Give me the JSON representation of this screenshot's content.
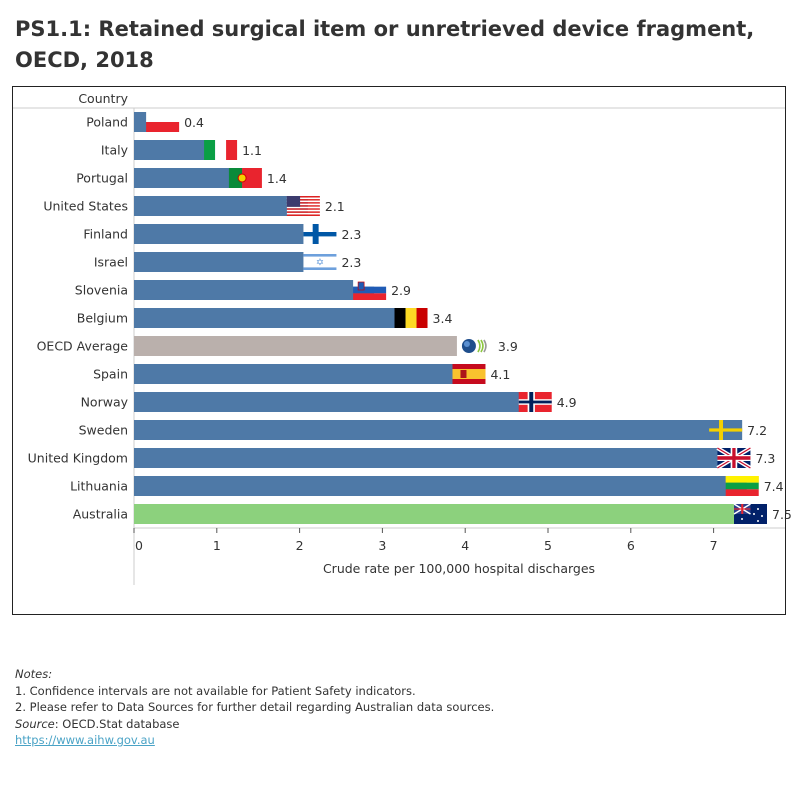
{
  "title": "PS1.1: Retained surgical item or unretrieved device fragment, OECD, 2018",
  "chart_data": {
    "type": "bar",
    "orientation": "horizontal",
    "row_header": "Country",
    "xlabel": "Crude rate per 100,000 hospital discharges",
    "xlim": [
      0,
      7.6
    ],
    "xticks": [
      "0",
      "1",
      "2",
      "3",
      "4",
      "5",
      "6",
      "7"
    ],
    "grid": false,
    "categories": [
      "Poland",
      "Italy",
      "Portugal",
      "United States",
      "Finland",
      "Israel",
      "Slovenia",
      "Belgium",
      "OECD Average",
      "Spain",
      "Norway",
      "Sweden",
      "United Kingdom",
      "Lithuania",
      "Australia"
    ],
    "values": [
      0.4,
      1.1,
      1.4,
      2.1,
      2.3,
      2.3,
      2.9,
      3.4,
      3.9,
      4.1,
      4.9,
      7.2,
      7.3,
      7.4,
      7.5
    ],
    "data_labels": [
      "0.4",
      "1.1",
      "1.4",
      "2.1",
      "2.3",
      "2.3",
      "2.9",
      "3.4",
      "3.9",
      "4.1",
      "4.9",
      "7.2",
      "7.3",
      "7.4",
      "7.5"
    ],
    "flags": [
      "poland-flag-icon",
      "italy-flag-icon",
      "portugal-flag-icon",
      "usa-flag-icon",
      "finland-flag-icon",
      "israel-flag-icon",
      "slovenia-flag-icon",
      "belgium-flag-icon",
      "oecd-logo-icon",
      "spain-flag-icon",
      "norway-flag-icon",
      "sweden-flag-icon",
      "uk-flag-icon",
      "lithuania-flag-icon",
      "australia-flag-icon"
    ],
    "colors": {
      "default": "#4e79a7",
      "OECD Average": "#bab0ac",
      "Australia": "#8cd17d"
    }
  },
  "notes": {
    "heading": "Notes:",
    "items": [
      "1. Confidence intervals are not available for Patient Safety indicators.",
      "2. Please refer to Data Sources for further detail regarding Australian data sources."
    ],
    "source_label": "Source",
    "source_text": ": OECD.Stat database",
    "link": "https://www.aihw.gov.au"
  }
}
